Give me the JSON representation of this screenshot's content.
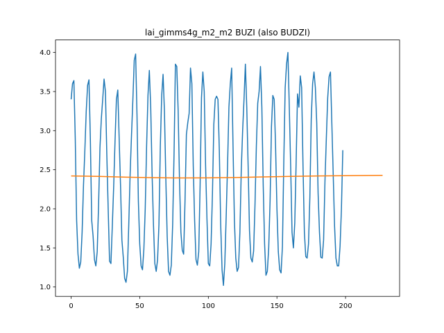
{
  "chart_data": {
    "type": "line",
    "title": "lai_gimms4g_m2_m2 BUZI (also BUDZI)",
    "xlabel": "",
    "ylabel": "",
    "xlim": [
      -11.4,
      239.4
    ],
    "ylim": [
      0.88,
      4.16
    ],
    "xticks": [
      0,
      50,
      100,
      150,
      200
    ],
    "yticks": [
      1.0,
      1.5,
      2.0,
      2.5,
      3.0,
      3.5,
      4.0
    ],
    "grid": false,
    "legend": "none",
    "series": [
      {
        "color": "#1f77b4",
        "points": [
          [
            0,
            3.4
          ],
          [
            1,
            3.6
          ],
          [
            2,
            3.64
          ],
          [
            3,
            2.9
          ],
          [
            4,
            1.85
          ],
          [
            5,
            1.42
          ],
          [
            6,
            1.24
          ],
          [
            7,
            1.32
          ],
          [
            8,
            1.7
          ],
          [
            9,
            2.3
          ],
          [
            10,
            2.75
          ],
          [
            11,
            3.25
          ],
          [
            12,
            3.58
          ],
          [
            13,
            3.65
          ],
          [
            14,
            2.9
          ],
          [
            15,
            1.85
          ],
          [
            16,
            1.65
          ],
          [
            17,
            1.35
          ],
          [
            18,
            1.27
          ],
          [
            19,
            1.45
          ],
          [
            20,
            2.05
          ],
          [
            21,
            2.78
          ],
          [
            22,
            3.15
          ],
          [
            23,
            3.4
          ],
          [
            24,
            3.66
          ],
          [
            25,
            3.5
          ],
          [
            26,
            2.7
          ],
          [
            27,
            2.0
          ],
          [
            28,
            1.33
          ],
          [
            29,
            1.3
          ],
          [
            30,
            1.78
          ],
          [
            31,
            2.28
          ],
          [
            32,
            2.87
          ],
          [
            33,
            3.4
          ],
          [
            34,
            3.52
          ],
          [
            35,
            2.9
          ],
          [
            36,
            2.3
          ],
          [
            37,
            1.6
          ],
          [
            38,
            1.38
          ],
          [
            39,
            1.11
          ],
          [
            40,
            1.06
          ],
          [
            41,
            1.2
          ],
          [
            42,
            1.8
          ],
          [
            43,
            2.45
          ],
          [
            44,
            2.94
          ],
          [
            45,
            3.4
          ],
          [
            46,
            3.9
          ],
          [
            47,
            3.98
          ],
          [
            48,
            3.2
          ],
          [
            49,
            2.1
          ],
          [
            50,
            1.55
          ],
          [
            51,
            1.27
          ],
          [
            52,
            1.22
          ],
          [
            53,
            1.48
          ],
          [
            54,
            2.0
          ],
          [
            55,
            2.8
          ],
          [
            56,
            3.45
          ],
          [
            57,
            3.77
          ],
          [
            58,
            3.3
          ],
          [
            59,
            2.45
          ],
          [
            60,
            1.8
          ],
          [
            61,
            1.3
          ],
          [
            62,
            1.2
          ],
          [
            63,
            1.35
          ],
          [
            64,
            1.8
          ],
          [
            65,
            2.8
          ],
          [
            66,
            3.45
          ],
          [
            67,
            3.72
          ],
          [
            68,
            3.25
          ],
          [
            69,
            2.4
          ],
          [
            70,
            1.65
          ],
          [
            71,
            1.2
          ],
          [
            72,
            1.15
          ],
          [
            73,
            1.28
          ],
          [
            74,
            1.8
          ],
          [
            75,
            2.7
          ],
          [
            76,
            3.85
          ],
          [
            77,
            3.82
          ],
          [
            78,
            3.25
          ],
          [
            79,
            2.35
          ],
          [
            80,
            1.7
          ],
          [
            81,
            1.47
          ],
          [
            82,
            1.42
          ],
          [
            83,
            2.1
          ],
          [
            84,
            2.95
          ],
          [
            85,
            3.1
          ],
          [
            86,
            3.22
          ],
          [
            87,
            3.8
          ],
          [
            88,
            3.6
          ],
          [
            89,
            2.55
          ],
          [
            90,
            1.85
          ],
          [
            91,
            1.35
          ],
          [
            92,
            1.28
          ],
          [
            93,
            1.45
          ],
          [
            94,
            2.3
          ],
          [
            95,
            3.42
          ],
          [
            96,
            3.75
          ],
          [
            97,
            3.5
          ],
          [
            98,
            2.55
          ],
          [
            99,
            1.87
          ],
          [
            100,
            1.3
          ],
          [
            101,
            1.27
          ],
          [
            102,
            1.55
          ],
          [
            103,
            2.2
          ],
          [
            104,
            3.08
          ],
          [
            105,
            3.4
          ],
          [
            106,
            3.44
          ],
          [
            107,
            3.4
          ],
          [
            108,
            2.75
          ],
          [
            109,
            1.8
          ],
          [
            110,
            1.22
          ],
          [
            111,
            1.02
          ],
          [
            112,
            1.3
          ],
          [
            113,
            1.9
          ],
          [
            114,
            2.55
          ],
          [
            115,
            3.3
          ],
          [
            116,
            3.6
          ],
          [
            117,
            3.8
          ],
          [
            118,
            2.8
          ],
          [
            119,
            1.85
          ],
          [
            120,
            1.37
          ],
          [
            121,
            1.2
          ],
          [
            122,
            1.25
          ],
          [
            123,
            1.7
          ],
          [
            124,
            2.5
          ],
          [
            125,
            3.0
          ],
          [
            126,
            3.4
          ],
          [
            127,
            3.85
          ],
          [
            128,
            3.3
          ],
          [
            129,
            2.55
          ],
          [
            130,
            1.72
          ],
          [
            131,
            1.37
          ],
          [
            132,
            1.32
          ],
          [
            133,
            1.46
          ],
          [
            134,
            2.05
          ],
          [
            135,
            2.8
          ],
          [
            136,
            3.35
          ],
          [
            137,
            3.5
          ],
          [
            138,
            3.82
          ],
          [
            139,
            3.3
          ],
          [
            140,
            2.3
          ],
          [
            141,
            1.55
          ],
          [
            142,
            1.15
          ],
          [
            143,
            1.2
          ],
          [
            144,
            1.5
          ],
          [
            145,
            2.1
          ],
          [
            146,
            3.05
          ],
          [
            147,
            3.45
          ],
          [
            148,
            3.4
          ],
          [
            149,
            2.8
          ],
          [
            150,
            2.0
          ],
          [
            151,
            1.45
          ],
          [
            152,
            1.22
          ],
          [
            153,
            1.18
          ],
          [
            154,
            1.52
          ],
          [
            155,
            2.6
          ],
          [
            156,
            3.55
          ],
          [
            157,
            3.85
          ],
          [
            158,
            4.0
          ],
          [
            159,
            3.3
          ],
          [
            160,
            2.55
          ],
          [
            161,
            1.7
          ],
          [
            162,
            1.5
          ],
          [
            163,
            1.82
          ],
          [
            164,
            2.6
          ],
          [
            165,
            3.47
          ],
          [
            166,
            3.3
          ],
          [
            167,
            3.7
          ],
          [
            168,
            3.55
          ],
          [
            169,
            2.55
          ],
          [
            170,
            1.7
          ],
          [
            171,
            1.39
          ],
          [
            172,
            1.37
          ],
          [
            173,
            1.55
          ],
          [
            174,
            2.15
          ],
          [
            175,
            3.15
          ],
          [
            176,
            3.6
          ],
          [
            177,
            3.75
          ],
          [
            178,
            3.55
          ],
          [
            179,
            3.1
          ],
          [
            180,
            2.2
          ],
          [
            181,
            1.7
          ],
          [
            182,
            1.38
          ],
          [
            183,
            1.37
          ],
          [
            184,
            1.6
          ],
          [
            185,
            2.35
          ],
          [
            186,
            2.9
          ],
          [
            187,
            3.42
          ],
          [
            188,
            3.69
          ],
          [
            189,
            3.75
          ],
          [
            190,
            3.1
          ],
          [
            191,
            2.45
          ],
          [
            192,
            1.78
          ],
          [
            193,
            1.37
          ],
          [
            194,
            1.27
          ],
          [
            195,
            1.27
          ],
          [
            196,
            1.52
          ],
          [
            197,
            2.0
          ],
          [
            198,
            2.75
          ]
        ]
      },
      {
        "color": "#ff7f0e",
        "points": [
          [
            0,
            2.42
          ],
          [
            20,
            2.415
          ],
          [
            40,
            2.405
          ],
          [
            60,
            2.398
          ],
          [
            80,
            2.395
          ],
          [
            100,
            2.396
          ],
          [
            120,
            2.4
          ],
          [
            140,
            2.408
          ],
          [
            160,
            2.415
          ],
          [
            180,
            2.42
          ],
          [
            200,
            2.424
          ],
          [
            227,
            2.428
          ]
        ]
      }
    ]
  }
}
